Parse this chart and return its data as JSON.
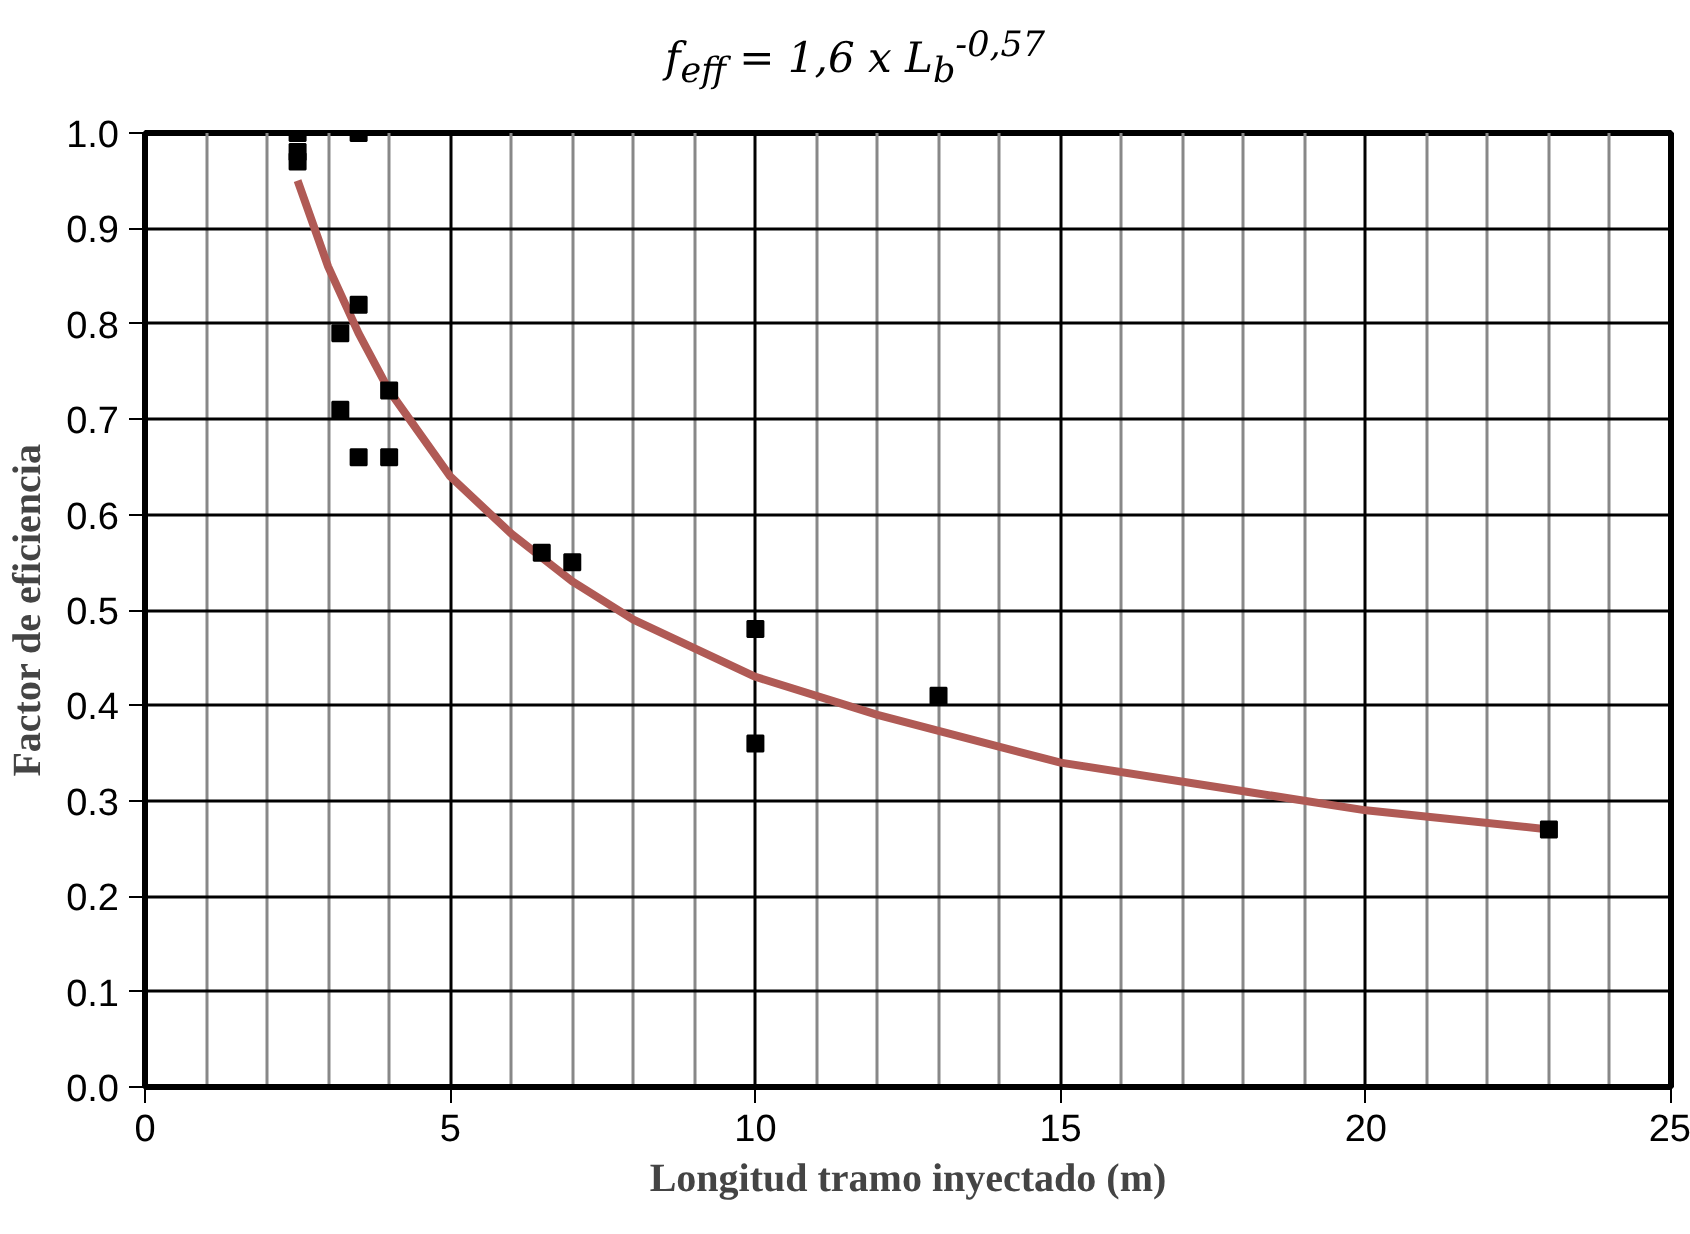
{
  "chart_data": {
    "type": "scatter",
    "title": "f$_{eff}$ = 1,6 x L$_{b}$$^{-0,57}$",
    "xlabel": "Longitud tramo inyectado (m)",
    "ylabel": "Factor de eficiencia",
    "xlim": [
      0,
      25
    ],
    "xticks": [
      0,
      5,
      10,
      15,
      20,
      25
    ],
    "ylim": [
      0,
      1
    ],
    "yticks": [
      {
        "value": 0,
        "label": "0.0"
      },
      0.1,
      0.2,
      0.3,
      0.4,
      0.5,
      0.6,
      0.7,
      0.8,
      0.9,
      {
        "value": 1,
        "label": "1.0"
      }
    ],
    "grid": true,
    "marker": "square",
    "series": [
      {
        "color": "#000000",
        "x": [
          2.5,
          2.5,
          2.5,
          3.5,
          3.2,
          3.5,
          3.2,
          3.5,
          4,
          4,
          6.5,
          7,
          10,
          10,
          13,
          23
        ],
        "values": [
          1.0,
          0.98,
          0.97,
          1.0,
          0.79,
          0.82,
          0.71,
          0.66,
          0.73,
          0.66,
          0.56,
          0.55,
          0.48,
          0.36,
          0.41,
          0.27
        ]
      },
      {
        "type": "line",
        "color": "#b05a55",
        "marker": "none",
        "x": [
          2.5,
          3,
          3.5,
          4,
          5,
          6,
          7,
          8,
          10,
          12,
          15,
          18,
          20,
          23
        ],
        "values": [
          0.95,
          0.86,
          0.79,
          0.73,
          0.64,
          0.58,
          0.53,
          0.49,
          0.43,
          0.39,
          0.34,
          0.31,
          0.29,
          0.27
        ]
      }
    ]
  }
}
